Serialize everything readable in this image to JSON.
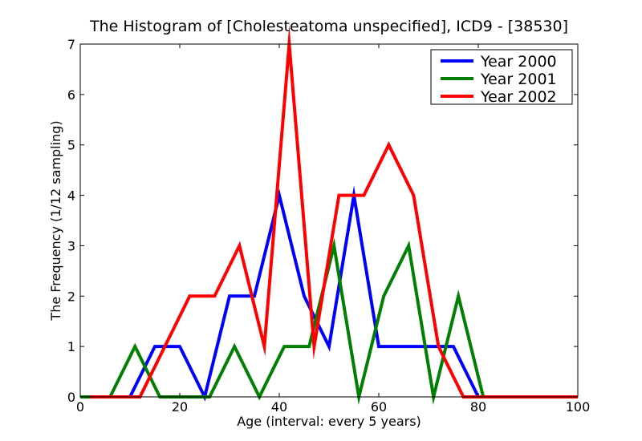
{
  "chart_data": {
    "type": "line",
    "title": "The Histogram of [Cholesteatoma unspecified], ICD9 - [38530]",
    "xlabel": "Age (interval: every 5 years)",
    "ylabel": "The Frequency (1/12 sampling)",
    "xlim": [
      0,
      100
    ],
    "ylim": [
      0,
      7
    ],
    "xticks": [
      0,
      20,
      40,
      60,
      80,
      100
    ],
    "yticks": [
      0,
      1,
      2,
      3,
      4,
      5,
      6,
      7
    ],
    "legend_position": "top-right",
    "series": [
      {
        "name": "Year 2000",
        "color": "#0000ff",
        "x": [
          0,
          5,
          10,
          15,
          20,
          25,
          30,
          35,
          40,
          45,
          50,
          55,
          60,
          65,
          70,
          75,
          80,
          85,
          90,
          95,
          100
        ],
        "values": [
          0,
          0,
          0,
          1,
          1,
          0,
          2,
          2,
          4,
          2,
          1,
          4,
          1,
          1,
          1,
          1,
          0,
          0,
          0,
          0,
          0
        ]
      },
      {
        "name": "Year 2001",
        "color": "#008000",
        "x": [
          0,
          6,
          11,
          16,
          21,
          26,
          31,
          36,
          41,
          46,
          51,
          56,
          61,
          66,
          71,
          76,
          81,
          86,
          91,
          96,
          100
        ],
        "values": [
          0,
          0,
          1,
          0,
          0,
          0,
          1,
          0,
          1,
          1,
          3,
          0,
          2,
          3,
          0,
          2,
          0,
          0,
          0,
          0,
          0
        ]
      },
      {
        "name": "Year 2002",
        "color": "#ff0000",
        "x": [
          2,
          7,
          12,
          17,
          22,
          27,
          32,
          37,
          42,
          47,
          52,
          57,
          62,
          67,
          72,
          77,
          82,
          87,
          92,
          97,
          100
        ],
        "values": [
          0,
          0,
          0,
          1,
          2,
          2,
          3,
          1,
          7,
          1,
          4,
          4,
          5,
          4,
          1,
          0,
          0,
          0,
          0,
          0,
          0
        ]
      }
    ]
  }
}
